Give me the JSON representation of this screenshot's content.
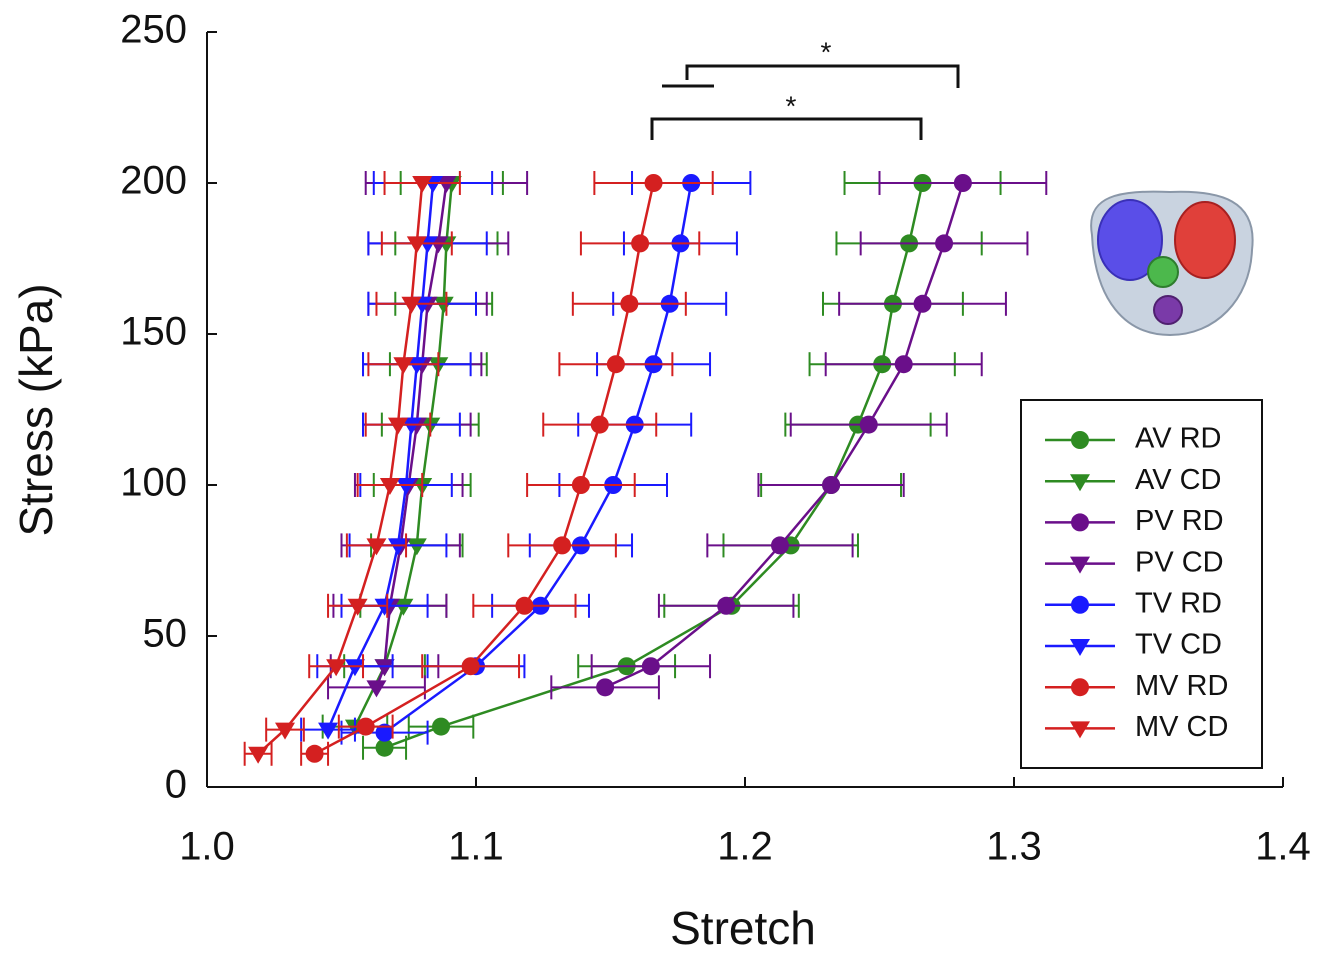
{
  "chart_data": {
    "type": "line",
    "x_label": "Stretch",
    "y_label": "Stress (kPa)",
    "xlim": [
      1.0,
      1.4
    ],
    "ylim": [
      0,
      250
    ],
    "xticks": [
      {
        "value": 1.0,
        "label": "1.0"
      },
      1.1,
      1.2,
      1.3,
      1.4
    ],
    "yticks": [
      0,
      50,
      100,
      150,
      200,
      250
    ],
    "grid": false,
    "legend": "lower right",
    "annotations": [
      "*",
      "*"
    ],
    "series": [
      {
        "name": "AV RD",
        "color": "#2e8b22",
        "marker": "circle",
        "x": [
          1.266,
          1.261,
          1.255,
          1.251,
          1.242,
          1.232,
          1.217,
          1.195,
          1.156,
          1.087,
          1.066
        ],
        "values": [
          200,
          180,
          160,
          140,
          120,
          100,
          80,
          60,
          40,
          20,
          13
        ],
        "xerr": [
          0.029,
          0.027,
          0.026,
          0.027,
          0.027,
          0.026,
          0.025,
          0.025,
          0.018,
          0.012,
          0.008
        ]
      },
      {
        "name": "AV CD",
        "color": "#2e8b22",
        "marker": "triangle",
        "x": [
          1.091,
          1.089,
          1.088,
          1.086,
          1.083,
          1.08,
          1.078,
          1.073,
          1.066,
          1.055
        ],
        "values": [
          200,
          180,
          160,
          140,
          120,
          100,
          80,
          60,
          40,
          20
        ],
        "xerr": [
          0.019,
          0.019,
          0.018,
          0.018,
          0.018,
          0.018,
          0.017,
          0.016,
          0.015,
          0.012
        ]
      },
      {
        "name": "PV RD",
        "color": "#6a0f8a",
        "marker": "circle",
        "x": [
          1.281,
          1.274,
          1.266,
          1.259,
          1.246,
          1.232,
          1.213,
          1.193,
          1.165,
          1.148
        ],
        "values": [
          200,
          180,
          160,
          140,
          120,
          100,
          80,
          60,
          40,
          33
        ],
        "xerr": [
          0.031,
          0.031,
          0.031,
          0.029,
          0.029,
          0.027,
          0.027,
          0.025,
          0.022,
          0.02
        ]
      },
      {
        "name": "PV CD",
        "color": "#6a0f8a",
        "marker": "triangle",
        "x": [
          1.089,
          1.086,
          1.082,
          1.08,
          1.078,
          1.075,
          1.072,
          1.068,
          1.066,
          1.063
        ],
        "values": [
          200,
          180,
          160,
          140,
          120,
          100,
          80,
          60,
          40,
          33
        ],
        "xerr": [
          0.03,
          0.026,
          0.022,
          0.022,
          0.02,
          0.02,
          0.022,
          0.021,
          0.02,
          0.018
        ]
      },
      {
        "name": "TV RD",
        "color": "#1a1aff",
        "marker": "circle",
        "x": [
          1.18,
          1.176,
          1.172,
          1.166,
          1.159,
          1.151,
          1.139,
          1.124,
          1.1,
          1.066
        ],
        "values": [
          200,
          180,
          160,
          140,
          120,
          100,
          80,
          60,
          40,
          18
        ],
        "xerr": [
          0.022,
          0.021,
          0.021,
          0.021,
          0.021,
          0.02,
          0.019,
          0.018,
          0.018,
          0.016
        ]
      },
      {
        "name": "TV CD",
        "color": "#1a1aff",
        "marker": "triangle",
        "x": [
          1.084,
          1.082,
          1.08,
          1.078,
          1.076,
          1.074,
          1.071,
          1.066,
          1.055,
          1.045
        ],
        "values": [
          200,
          180,
          160,
          140,
          120,
          100,
          80,
          60,
          40,
          19
        ],
        "xerr": [
          0.022,
          0.022,
          0.02,
          0.02,
          0.018,
          0.017,
          0.018,
          0.016,
          0.014,
          0.01
        ]
      },
      {
        "name": "MV RD",
        "color": "#d42020",
        "marker": "circle",
        "x": [
          1.166,
          1.161,
          1.157,
          1.152,
          1.146,
          1.139,
          1.132,
          1.118,
          1.098,
          1.059,
          1.04
        ],
        "values": [
          200,
          180,
          160,
          140,
          120,
          100,
          80,
          60,
          40,
          20,
          11
        ],
        "xerr": [
          0.022,
          0.022,
          0.021,
          0.021,
          0.021,
          0.02,
          0.02,
          0.019,
          0.018,
          0.01,
          0.005
        ]
      },
      {
        "name": "MV CD",
        "color": "#d42020",
        "marker": "triangle",
        "x": [
          1.08,
          1.078,
          1.076,
          1.073,
          1.071,
          1.068,
          1.063,
          1.056,
          1.048,
          1.029,
          1.019
        ],
        "values": [
          200,
          180,
          160,
          140,
          120,
          100,
          80,
          60,
          40,
          19,
          11
        ],
        "xerr": [
          0.014,
          0.013,
          0.013,
          0.013,
          0.012,
          0.012,
          0.011,
          0.011,
          0.01,
          0.007,
          0.005
        ]
      }
    ]
  }
}
